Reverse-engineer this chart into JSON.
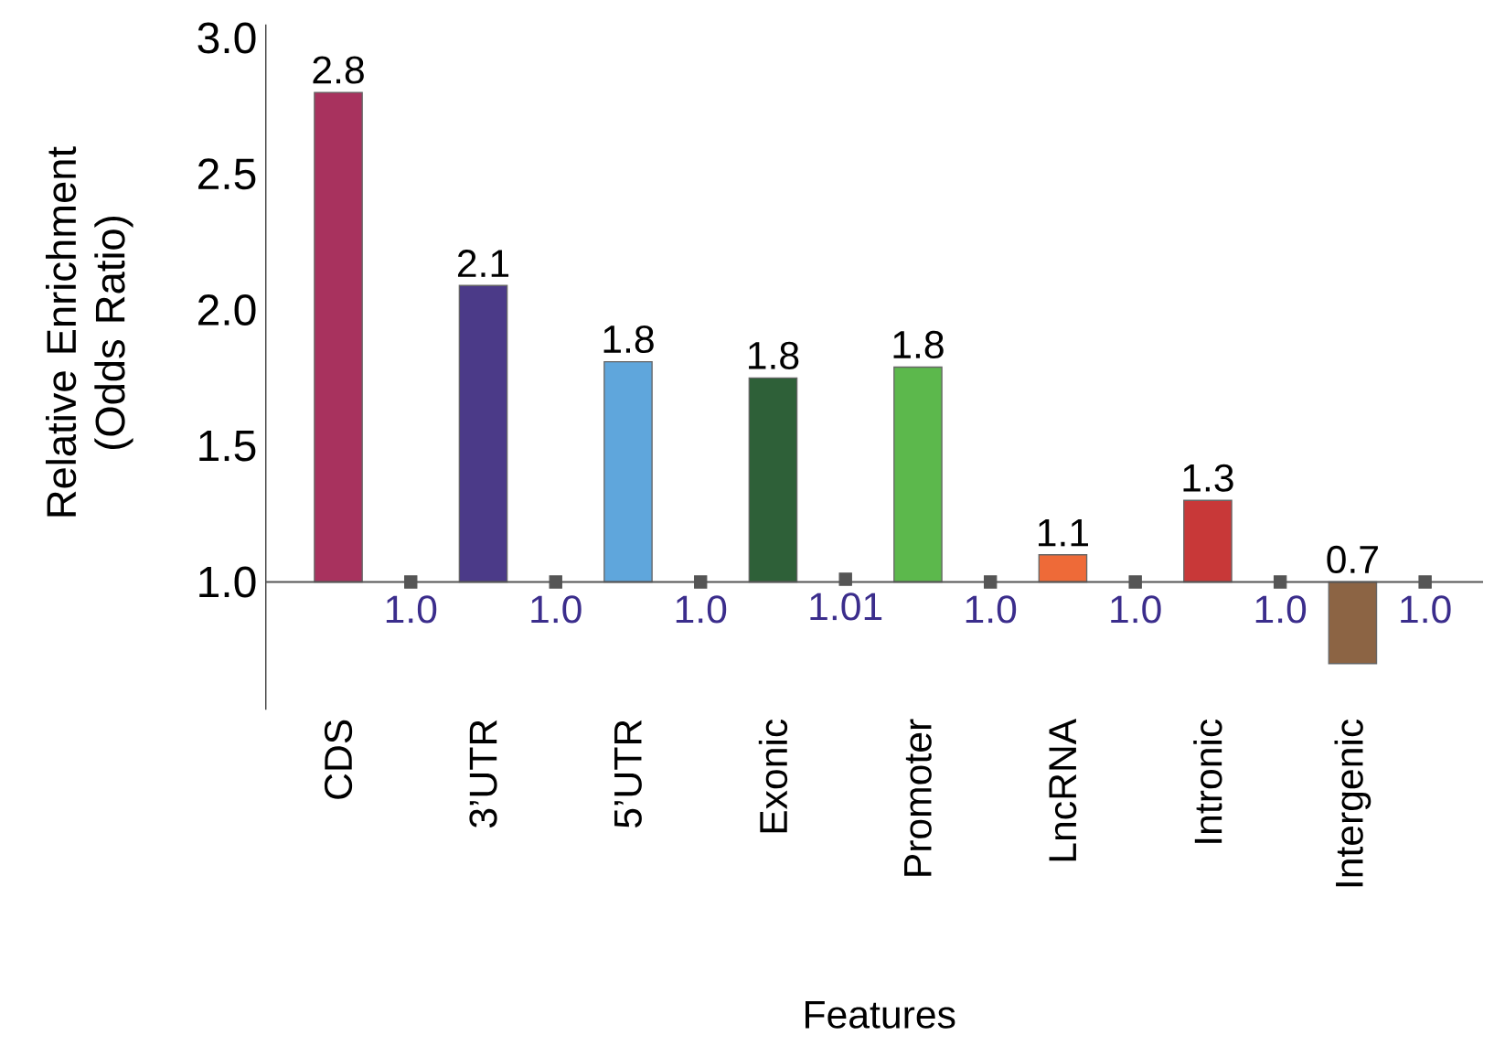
{
  "chart_data": {
    "type": "bar",
    "xlabel": "Features",
    "ylabel": "Relative Enrichment (Odds Ratio)",
    "categories": [
      "CDS",
      null,
      "3’UTR",
      null,
      "5’UTR",
      null,
      "Exonic",
      null,
      "Promoter",
      null,
      "LncRNA",
      null,
      "Intronic",
      null,
      "Intergenic",
      null
    ],
    "series": [
      {
        "base": [
          1,
          null,
          1,
          null,
          1,
          null,
          1,
          null,
          1,
          null,
          1,
          null,
          1,
          null,
          1,
          null
        ],
        "values": [
          1.8,
          null,
          1.09,
          null,
          0.81,
          null,
          0.75,
          null,
          0.79,
          null,
          0.1,
          null,
          0.3,
          null,
          -0.3,
          null
        ],
        "colors": [
          "#a8325e",
          null,
          "#4b3a88",
          null,
          "#5fa6dc",
          null,
          "#2e6038",
          null,
          "#5cb84c",
          null,
          "#ee6a38",
          null,
          "#c83838",
          null,
          "#8c6444",
          null
        ],
        "value_labels": [
          "2.8",
          null,
          "2.1",
          null,
          "1.8",
          null,
          "1.8",
          null,
          "1.8",
          null,
          "1.1",
          null,
          "1.3",
          null,
          "0.7",
          null
        ]
      },
      {
        "type": "scatter",
        "marker": "square",
        "color": "#555555",
        "values": [
          null,
          1.0,
          null,
          1.0,
          null,
          1.0,
          null,
          1.01,
          null,
          1.0,
          null,
          1.0,
          null,
          1.0,
          null,
          1.0
        ],
        "value_labels": [
          null,
          "1.0",
          null,
          "1.0",
          null,
          "1.0",
          null,
          "1.01",
          null,
          "1.0",
          null,
          "1.0",
          null,
          "1.0",
          null,
          "1.0"
        ]
      }
    ],
    "ylim": [
      0.53,
      3.05
    ],
    "yticks": [
      {
        "value": 1,
        "label": "1.0"
      },
      1.5,
      {
        "value": 2,
        "label": "2.0"
      },
      2.5,
      {
        "value": 3,
        "label": "3.0"
      }
    ],
    "ref_lines": [
      {
        "axis": "y",
        "value": 1,
        "color": "#555555"
      }
    ],
    "grid": false
  }
}
